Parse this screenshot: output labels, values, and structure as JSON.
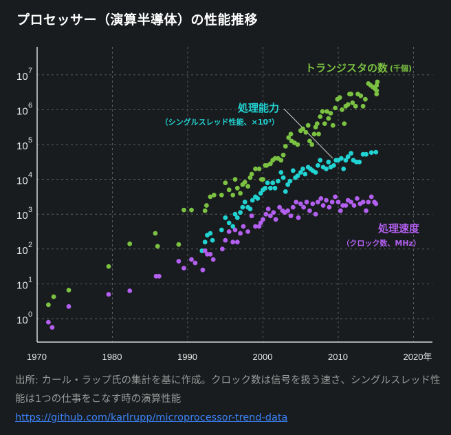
{
  "title": "プロセッサー（演算半導体）の性能推移",
  "chart_data": {
    "type": "scatter",
    "title": "プロセッサー（演算半導体）の性能推移",
    "xlabel": "",
    "ylabel": "",
    "xlim": [
      1970,
      2022.5
    ],
    "ylim_log10": [
      -0.65,
      7.5
    ],
    "yscale": "log",
    "grid": true,
    "x_ticks": [
      {
        "value": 1970,
        "label": "1970"
      },
      {
        "value": 1980,
        "label": "1980"
      },
      {
        "value": 1990,
        "label": "1990"
      },
      {
        "value": 2000,
        "label": "2000"
      },
      {
        "value": 2010,
        "label": "2010"
      },
      {
        "value": 2020,
        "label": "2020年"
      }
    ],
    "y_ticks": [
      {
        "exp": 0,
        "base": "10",
        "sup": "0"
      },
      {
        "exp": 1,
        "base": "10",
        "sup": "1"
      },
      {
        "exp": 2,
        "base": "10",
        "sup": "2"
      },
      {
        "exp": 3,
        "base": "10",
        "sup": "3"
      },
      {
        "exp": 4,
        "base": "10",
        "sup": "4"
      },
      {
        "exp": 5,
        "base": "10",
        "sup": "5"
      },
      {
        "exp": 6,
        "base": "10",
        "sup": "6"
      },
      {
        "exp": 7,
        "base": "10",
        "sup": "7"
      }
    ],
    "series": [
      {
        "name": "トランジスタの数",
        "unit_label": "(千個)",
        "color": "#7cc242",
        "points_log10": [
          [
            1971.5,
            0.4
          ],
          [
            1972.2,
            0.63
          ],
          [
            1974.2,
            0.82
          ],
          [
            1979.5,
            1.5
          ],
          [
            1982.3,
            2.15
          ],
          [
            1985.7,
            2.45
          ],
          [
            1986.0,
            2.08
          ],
          [
            1988.8,
            2.13
          ],
          [
            1989.5,
            3.12
          ],
          [
            1990.5,
            3.12
          ],
          [
            1992.3,
            3.1
          ],
          [
            1992.5,
            3.25
          ],
          [
            1993.0,
            3.5
          ],
          [
            1993.5,
            3.55
          ],
          [
            1994.5,
            3.55
          ],
          [
            1995.0,
            3.9
          ],
          [
            1995.5,
            3.7
          ],
          [
            1996.0,
            3.55
          ],
          [
            1996.3,
            4.0
          ],
          [
            1996.6,
            3.75
          ],
          [
            1997.0,
            3.6
          ],
          [
            1997.3,
            3.85
          ],
          [
            1997.6,
            3.92
          ],
          [
            1998.0,
            3.8
          ],
          [
            1998.3,
            4.05
          ],
          [
            1998.5,
            4.15
          ],
          [
            1999.0,
            4.3
          ],
          [
            1999.5,
            4.3
          ],
          [
            1999.8,
            4.0
          ],
          [
            2000.0,
            4.0
          ],
          [
            2000.3,
            4.4
          ],
          [
            2000.5,
            4.4
          ],
          [
            2001.0,
            4.45
          ],
          [
            2001.3,
            4.55
          ],
          [
            2001.6,
            4.6
          ],
          [
            2002.0,
            4.6
          ],
          [
            2002.4,
            4.55
          ],
          [
            2002.7,
            4.7
          ],
          [
            2003.0,
            4.95
          ],
          [
            2003.4,
            5.2
          ],
          [
            2003.7,
            5.3
          ],
          [
            2003.8,
            5.1
          ],
          [
            2004.2,
            5.05
          ],
          [
            2004.6,
            5.0
          ],
          [
            2005.0,
            5.4
          ],
          [
            2005.3,
            5.45
          ],
          [
            2005.7,
            5.35
          ],
          [
            2006.0,
            5.55
          ],
          [
            2006.2,
            5.1
          ],
          [
            2006.5,
            5.0
          ],
          [
            2006.8,
            5.3
          ],
          [
            2007.0,
            5.5
          ],
          [
            2007.2,
            5.6
          ],
          [
            2007.4,
            5.3
          ],
          [
            2007.6,
            5.8
          ],
          [
            2007.9,
            5.95
          ],
          [
            2008.2,
            5.6
          ],
          [
            2008.5,
            5.95
          ],
          [
            2008.7,
            5.75
          ],
          [
            2009.0,
            5.9
          ],
          [
            2009.3,
            5.55
          ],
          [
            2009.6,
            6.05
          ],
          [
            2009.9,
            6.3
          ],
          [
            2010.2,
            6.35
          ],
          [
            2010.5,
            6.0
          ],
          [
            2010.8,
            5.6
          ],
          [
            2011.0,
            6.1
          ],
          [
            2011.3,
            6.15
          ],
          [
            2011.5,
            6.45
          ],
          [
            2011.7,
            6.45
          ],
          [
            2011.9,
            6.2
          ],
          [
            2012.3,
            6.1
          ],
          [
            2012.6,
            6.45
          ],
          [
            2013.0,
            6.4
          ],
          [
            2013.3,
            6.1
          ],
          [
            2013.6,
            6.3
          ],
          [
            2014.0,
            6.75
          ],
          [
            2014.3,
            6.7
          ],
          [
            2014.6,
            6.65
          ],
          [
            2014.9,
            6.6
          ],
          [
            2015.1,
            6.7
          ],
          [
            2015.1,
            6.55
          ],
          [
            2015.2,
            6.8
          ],
          [
            2015.1,
            6.45
          ]
        ]
      },
      {
        "name": "処理能力",
        "unit_label": "(シングルスレッド性能、×10³)",
        "color": "#22d3d3",
        "points_log10": [
          [
            1991.9,
            1.95
          ],
          [
            1992.3,
            2.2
          ],
          [
            1992.6,
            2.4
          ],
          [
            1993.0,
            2.45
          ],
          [
            1993.3,
            2.25
          ],
          [
            1994.5,
            2.55
          ],
          [
            1995.0,
            2.9
          ],
          [
            1995.5,
            2.75
          ],
          [
            1996.0,
            2.65
          ],
          [
            1996.3,
            3.0
          ],
          [
            1996.6,
            2.9
          ],
          [
            1997.0,
            3.05
          ],
          [
            1997.3,
            3.2
          ],
          [
            1997.6,
            3.35
          ],
          [
            1998.0,
            3.2
          ],
          [
            1998.3,
            3.15
          ],
          [
            1998.6,
            3.4
          ],
          [
            1999.0,
            3.5
          ],
          [
            1999.3,
            3.45
          ],
          [
            1999.7,
            3.6
          ],
          [
            2000.0,
            3.7
          ],
          [
            2000.3,
            3.75
          ],
          [
            2000.6,
            3.9
          ],
          [
            2001.0,
            3.75
          ],
          [
            2001.3,
            3.9
          ],
          [
            2001.6,
            3.75
          ],
          [
            2002.0,
            3.95
          ],
          [
            2002.4,
            4.2
          ],
          [
            2002.7,
            4.05
          ],
          [
            2003.0,
            3.65
          ],
          [
            2003.3,
            3.85
          ],
          [
            2003.6,
            3.95
          ],
          [
            2004.0,
            4.25
          ],
          [
            2004.3,
            4.05
          ],
          [
            2004.6,
            4.1
          ],
          [
            2005.0,
            4.2
          ],
          [
            2005.3,
            4.3
          ],
          [
            2005.6,
            4.15
          ],
          [
            2006.0,
            4.35
          ],
          [
            2006.3,
            4.3
          ],
          [
            2006.6,
            4.25
          ],
          [
            2007.0,
            4.2
          ],
          [
            2007.3,
            4.4
          ],
          [
            2007.6,
            4.55
          ],
          [
            2008.0,
            4.35
          ],
          [
            2008.4,
            4.3
          ],
          [
            2008.7,
            4.5
          ],
          [
            2009.0,
            4.35
          ],
          [
            2009.4,
            4.4
          ],
          [
            2009.7,
            4.55
          ],
          [
            2010.0,
            4.55
          ],
          [
            2010.4,
            4.6
          ],
          [
            2010.7,
            4.3
          ],
          [
            2011.0,
            4.55
          ],
          [
            2011.3,
            4.65
          ],
          [
            2011.7,
            4.75
          ],
          [
            2012.0,
            4.55
          ],
          [
            2012.4,
            4.5
          ],
          [
            2012.8,
            4.5
          ],
          [
            2013.3,
            4.72
          ],
          [
            2013.7,
            4.72
          ],
          [
            2014.4,
            4.77
          ],
          [
            2015.0,
            4.78
          ]
        ]
      },
      {
        "name": "処理速度",
        "unit_label": "(クロック数、MHz)",
        "color": "#b35ff0",
        "points_log10": [
          [
            1971.5,
            -0.1
          ],
          [
            1972.0,
            -0.25
          ],
          [
            1974.2,
            0.35
          ],
          [
            1979.5,
            0.7
          ],
          [
            1982.3,
            0.8
          ],
          [
            1985.8,
            1.22
          ],
          [
            1986.2,
            1.22
          ],
          [
            1988.8,
            1.65
          ],
          [
            1989.5,
            1.45
          ],
          [
            1990.5,
            1.7
          ],
          [
            1991.0,
            1.6
          ],
          [
            1992.0,
            1.4
          ],
          [
            1992.3,
            1.95
          ],
          [
            1992.6,
            1.85
          ],
          [
            1993.0,
            1.85
          ],
          [
            1993.4,
            1.7
          ],
          [
            1994.6,
            2.0
          ],
          [
            1995.0,
            2.25
          ],
          [
            1995.5,
            2.5
          ],
          [
            1996.0,
            2.2
          ],
          [
            1996.3,
            2.55
          ],
          [
            1996.6,
            2.2
          ],
          [
            1997.0,
            2.45
          ],
          [
            1997.4,
            2.65
          ],
          [
            1998.0,
            2.5
          ],
          [
            1998.5,
            2.95
          ],
          [
            1999.0,
            2.65
          ],
          [
            1999.5,
            2.65
          ],
          [
            1999.7,
            2.75
          ],
          [
            2000.0,
            2.85
          ],
          [
            2000.4,
            3.0
          ],
          [
            2000.7,
            3.15
          ],
          [
            2001.0,
            2.95
          ],
          [
            2001.4,
            3.05
          ],
          [
            2001.7,
            2.85
          ],
          [
            2002.2,
            3.2
          ],
          [
            2002.6,
            3.1
          ],
          [
            2002.9,
            3.05
          ],
          [
            2003.3,
            3.1
          ],
          [
            2003.7,
            2.95
          ],
          [
            2004.0,
            3.2
          ],
          [
            2004.4,
            3.35
          ],
          [
            2004.7,
            2.9
          ],
          [
            2005.0,
            3.3
          ],
          [
            2005.4,
            3.2
          ],
          [
            2005.8,
            3.35
          ],
          [
            2006.2,
            3.1
          ],
          [
            2006.6,
            3.3
          ],
          [
            2007.0,
            3.0
          ],
          [
            2007.3,
            3.35
          ],
          [
            2007.7,
            3.45
          ],
          [
            2008.0,
            3.25
          ],
          [
            2008.4,
            3.4
          ],
          [
            2008.8,
            3.2
          ],
          [
            2009.2,
            3.35
          ],
          [
            2009.6,
            3.5
          ],
          [
            2010.0,
            3.35
          ],
          [
            2010.3,
            3.1
          ],
          [
            2010.6,
            3.25
          ],
          [
            2011.0,
            3.25
          ],
          [
            2011.3,
            3.4
          ],
          [
            2011.7,
            3.35
          ],
          [
            2012.1,
            3.25
          ],
          [
            2012.5,
            3.45
          ],
          [
            2012.9,
            3.3
          ],
          [
            2013.3,
            3.35
          ],
          [
            2013.7,
            3.1
          ],
          [
            2014.0,
            3.35
          ],
          [
            2014.4,
            3.5
          ],
          [
            2014.8,
            3.35
          ],
          [
            2015.0,
            3.3
          ]
        ]
      }
    ],
    "annotations": [
      {
        "series": 0,
        "title": "トランジスタの数",
        "sub": "(千個)"
      },
      {
        "series": 1,
        "title": "処理能力",
        "sub": "（シングルスレッド性能、×10³）"
      },
      {
        "series": 2,
        "title": "処理速度",
        "sub": "（クロック数、MHz）"
      }
    ]
  },
  "footer": {
    "note": "出所: カール・ラップ氏の集計を基に作成。クロック数は信号を扱う速さ、シングルスレッド性能は1つの仕事をこなす時の演算性能",
    "link": "https://github.com/karlrupp/microprocessor-trend-data"
  }
}
